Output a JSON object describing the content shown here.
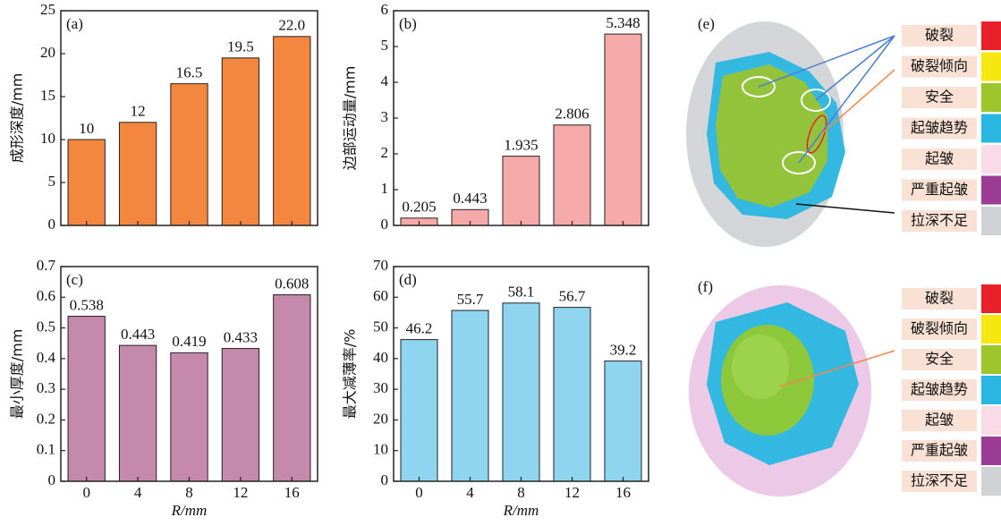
{
  "chart_data": [
    {
      "type": "bar",
      "label": "(a)",
      "ylabel": "成形深度/mm",
      "categories": [
        null,
        null,
        null,
        null,
        null
      ],
      "values": [
        10,
        12,
        16.5,
        19.5,
        22.0
      ],
      "value_labels": [
        "10",
        "12",
        "16.5",
        "19.5",
        "22.0"
      ],
      "color": "#f4873f",
      "ylim": [
        0,
        25
      ],
      "yticks": [
        0,
        5,
        10,
        15,
        20,
        25
      ]
    },
    {
      "type": "bar",
      "label": "(b)",
      "ylabel": "边部运动量/mm",
      "categories": [
        null,
        null,
        null,
        null,
        null
      ],
      "values": [
        0.205,
        0.443,
        1.935,
        2.806,
        5.348
      ],
      "color": "#f5a9a9",
      "ylim": [
        0,
        6
      ],
      "yticks": [
        0,
        1,
        2,
        3,
        4,
        5,
        6
      ]
    },
    {
      "type": "bar",
      "label": "(c)",
      "ylabel": "最小厚度/mm",
      "xlabel": "R/mm",
      "categories": [
        "0",
        "4",
        "8",
        "12",
        "16"
      ],
      "values": [
        0.538,
        0.443,
        0.419,
        0.433,
        0.608
      ],
      "color": "#c58aab",
      "ylim": [
        0,
        0.7
      ],
      "yticks": [
        0,
        0.1,
        0.2,
        0.3,
        0.4,
        0.5,
        0.6,
        0.7
      ]
    },
    {
      "type": "bar",
      "label": "(d)",
      "ylabel": "最大减薄率/%",
      "xlabel": "R/mm",
      "categories": [
        "0",
        "4",
        "8",
        "12",
        "16"
      ],
      "values": [
        46.2,
        55.7,
        58.1,
        56.7,
        39.2
      ],
      "color": "#8fd5f0",
      "ylim": [
        0,
        70
      ],
      "yticks": [
        0,
        10,
        20,
        30,
        40,
        50,
        60,
        70
      ]
    }
  ],
  "panels": [
    {
      "label": "(e)",
      "legend": [
        {
          "name": "破裂",
          "color": "#e8202a"
        },
        {
          "name": "破裂倾向",
          "color": "#f5e70f"
        },
        {
          "name": "安全",
          "color": "#9dc52c"
        },
        {
          "name": "起皱趋势",
          "color": "#29b6e0"
        },
        {
          "name": "起皱",
          "color": "#f8dbe7"
        },
        {
          "name": "严重起皱",
          "color": "#9b3d94"
        },
        {
          "name": "拉深不足",
          "color": "#d0d3d6"
        }
      ]
    },
    {
      "label": "(f)",
      "legend": [
        {
          "name": "破裂",
          "color": "#e8202a"
        },
        {
          "name": "破裂倾向",
          "color": "#f5e70f"
        },
        {
          "name": "安全",
          "color": "#9dc52c"
        },
        {
          "name": "起皱趋势",
          "color": "#29b6e0"
        },
        {
          "name": "起皱",
          "color": "#f8dbe7"
        },
        {
          "name": "严重起皱",
          "color": "#9b3d94"
        },
        {
          "name": "拉深不足",
          "color": "#d0d3d6"
        }
      ]
    }
  ]
}
